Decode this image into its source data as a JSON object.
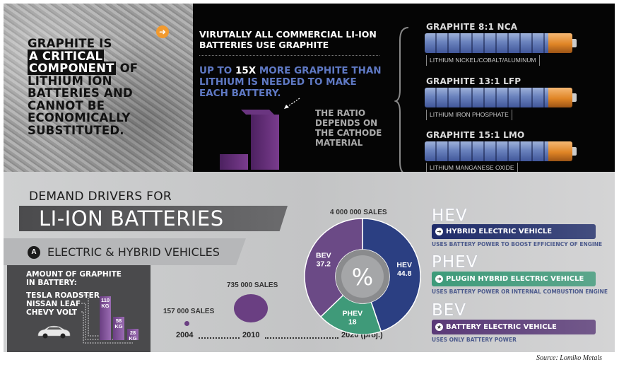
{
  "headline": {
    "line1": "GRAPHITE IS",
    "line2": "A CRITICAL",
    "line3": "COMPONENT",
    "line3_rest": "OF",
    "line4": "LITHIUM ION BATTERIES AND CANNOT BE ECONOMICALLY SUBSTITUTED."
  },
  "intro": {
    "virtually": "VIRUTALLY ALL COMMERCIAL LI-ION BATTERIES USE GRAPHITE",
    "upto_a": "UP TO",
    "upto_b": "15X",
    "upto_c": "MORE GRAPHITE THAN LITHIUM IS NEEDED TO MAKE EACH BATTERY.",
    "ratio": "THE RATIO DEPENDS ON THE CATHODE MATERIAL"
  },
  "batteries": [
    {
      "label": "GRAPHITE 8:1 NCA",
      "sub": "LITHIUM NICKEL/COBALT/ALUMINUM"
    },
    {
      "label": "GRAPHITE 13:1 LFP",
      "sub": "LITHIUM IRON PHOSPHATE"
    },
    {
      "label": "GRAPHITE 15:1 LMO",
      "sub": "LITHIUM MANGANESE OXIDE"
    }
  ],
  "demand": {
    "title": "DEMAND DRIVERS FOR",
    "subtitle": "LI-ION BATTERIES"
  },
  "ev_section": {
    "letter": "A",
    "title": "ELECTRIC & HYBRID VEHICLES",
    "amount_label": "AMOUNT OF GRAPHITE IN BATTERY:"
  },
  "cars": [
    {
      "name": "TESLA ROADSTER",
      "kg": "110",
      "unit": "KG",
      "value": 110
    },
    {
      "name": "NISSAN LEAF",
      "kg": "58",
      "unit": "KG",
      "value": 58
    },
    {
      "name": "CHEVY VOLT",
      "kg": "28",
      "unit": "KG",
      "value": 28
    }
  ],
  "sales": {
    "s2004": "157 000 SALES",
    "s2010": "735 000 SALES",
    "s2020": "4 000 000 SALES"
  },
  "timeline": {
    "y1": "2004",
    "y2": "2010",
    "y3": "2020 (proj.)"
  },
  "chart_data": {
    "type": "pie",
    "categories": [
      "HEV",
      "PHEV",
      "BEV"
    ],
    "values": [
      44.8,
      18,
      37.2
    ],
    "labels": [
      "HEV\n44.8",
      "PHEV\n18",
      "BEV\n37.2"
    ],
    "center_label": "%",
    "colors": [
      "#2b3f82",
      "#3f9a79",
      "#6b4a86"
    ]
  },
  "types": [
    {
      "abbr": "HEV",
      "icon": "➜",
      "name": "HYBRID ELECTRIC VEHICLE",
      "desc": "USES BATTERY POWER TO BOOST EFFICIENCY OF ENGINE",
      "color": "#1f2c6a"
    },
    {
      "abbr": "PHEV",
      "icon": "➜",
      "name": "PLUGIN HYBRID ELECTRIC VEHICLE",
      "desc": "USES BATTERY POWER OR INTERNAL COMBUSTION ENGINE",
      "color": "#3e9b7a"
    },
    {
      "abbr": "BEV",
      "icon": "★",
      "name": "BATTERY ELECTRIC VEHICLE",
      "desc": "USES ONLY BATTERY POWER",
      "color": "#5a3a78"
    }
  ],
  "source": "Source: Lomiko Metals",
  "colors": {
    "purple": "#6a3f82",
    "orange": "#e08526",
    "blue_text": "#5f79c4"
  }
}
